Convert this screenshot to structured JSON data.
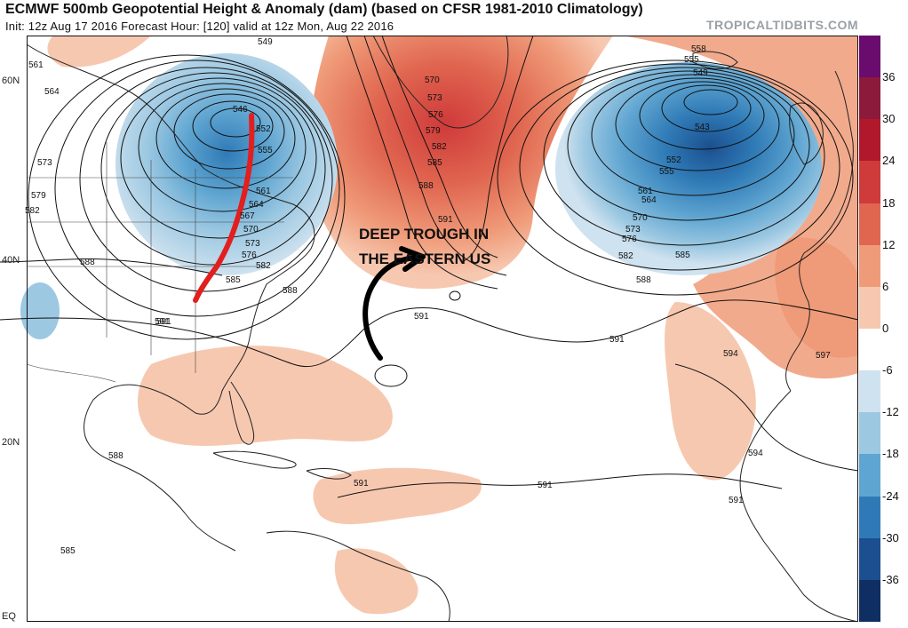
{
  "header": {
    "title": "ECMWF 500mb Geopotential Height & Anomaly (dam) (based on CFSR 1981-2010 Climatology)",
    "subtitle": "Init: 12z Aug 17 2016   Forecast Hour: [120]   valid at 12z Mon, Aug 22 2016",
    "brand": "TROPICALTIDBITS.COM"
  },
  "latitude_labels": [
    "60N",
    "40N",
    "20N",
    "EQ"
  ],
  "colorbar": {
    "ticks": [
      "36",
      "30",
      "24",
      "18",
      "12",
      "6",
      "0",
      "-6",
      "-12",
      "-18",
      "-24",
      "-30",
      "-36"
    ],
    "colors": [
      "#6a0c6e",
      "#8c1a3b",
      "#b2182b",
      "#cf3a3a",
      "#e06650",
      "#ef9a78",
      "#f7c8b0",
      "#ffffff",
      "#cfe2ef",
      "#9cc8e2",
      "#5fa5d1",
      "#2f7ab6",
      "#1b4f8f",
      "#0f2f63"
    ]
  },
  "annotation": {
    "line1": "DEEP TROUGH IN",
    "line2": "THE EASTERN US"
  },
  "contour_labels": {
    "west_low": [
      "561",
      "564",
      "573",
      "579",
      "582",
      "588",
      "591",
      "546",
      "549",
      "552",
      "555",
      "561",
      "564",
      "567",
      "570",
      "573",
      "576",
      "582",
      "585",
      "588",
      "591"
    ],
    "east_low": [
      "558",
      "555",
      "549",
      "543",
      "552",
      "555",
      "561",
      "564",
      "570",
      "573",
      "576",
      "582",
      "585",
      "588",
      "591",
      "594",
      "597",
      "594",
      "591"
    ],
    "ridge": [
      "570",
      "573",
      "576",
      "579",
      "582",
      "585",
      "588",
      "591"
    ],
    "south": [
      "588",
      "591",
      "585",
      "591",
      "591"
    ]
  }
}
